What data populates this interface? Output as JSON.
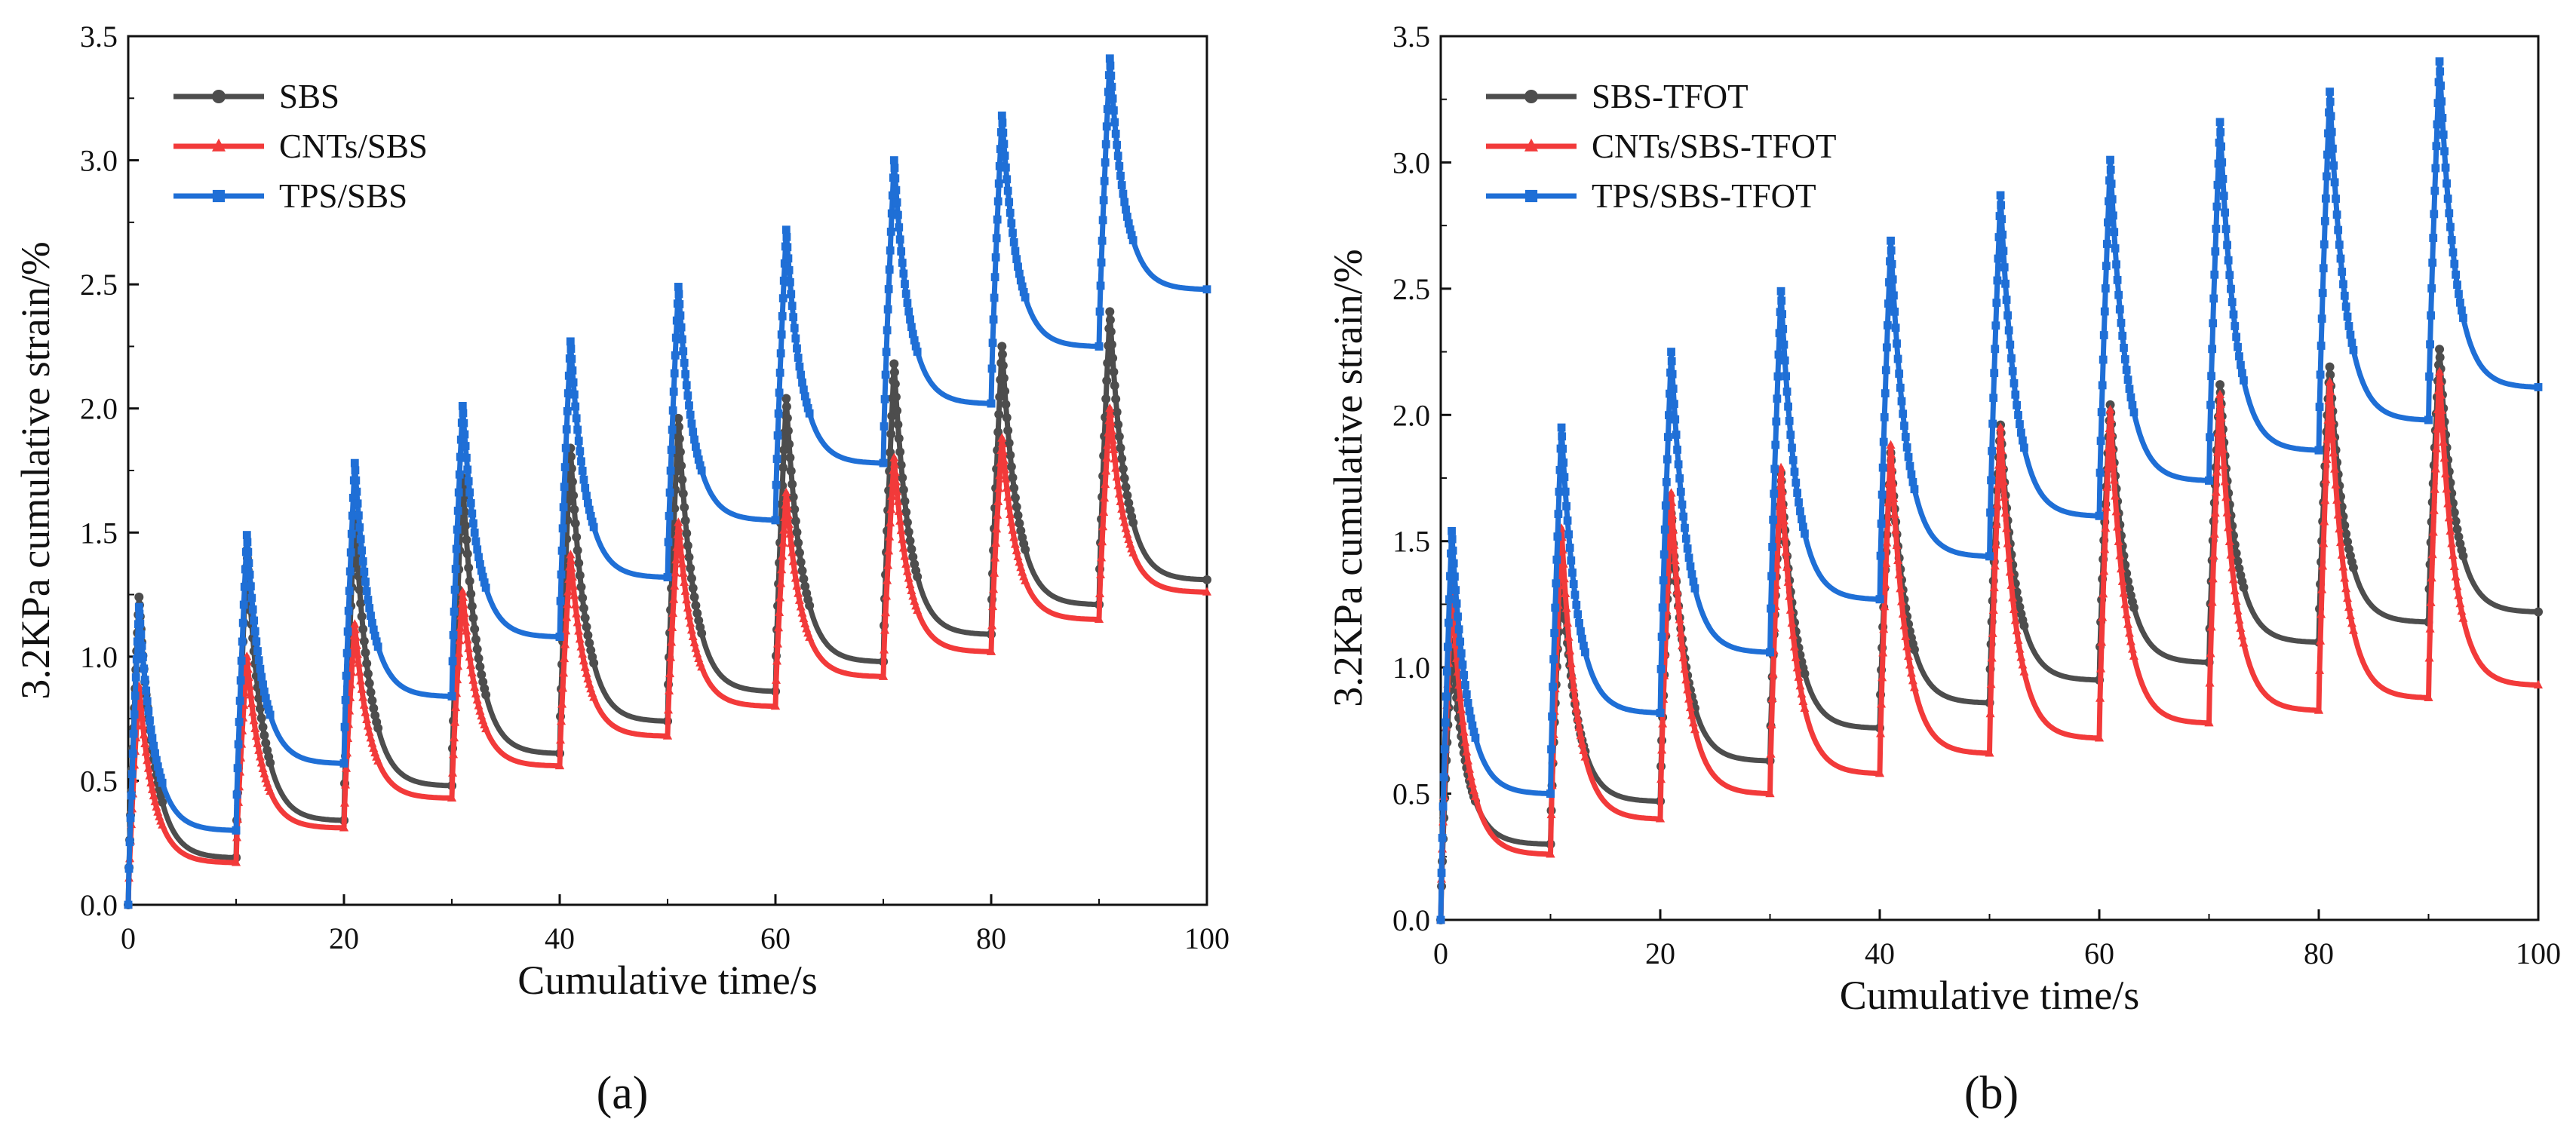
{
  "colors": {
    "sbs": "#4d4d4d",
    "cnts": "#f23a3a",
    "tps": "#1f6fd6"
  },
  "chart_data": [
    {
      "id": "a",
      "panel_label": "(a)",
      "type": "line",
      "xlabel": "Cumulative time/s",
      "ylabel": "3.2KPa cumulative strain/%",
      "xlim": [
        0,
        100
      ],
      "ylim": [
        0.0,
        3.5
      ],
      "xticks": [
        "0",
        "20",
        "40",
        "60",
        "80",
        "100"
      ],
      "yticks": [
        "0.0",
        "0.5",
        "1.0",
        "1.5",
        "2.0",
        "2.5",
        "3.0",
        "3.5"
      ],
      "legend_position": "top-left",
      "cycle_seconds": 10,
      "load_seconds": 1,
      "series": [
        {
          "name": "SBS",
          "color": "#4d4d4d",
          "marker": "circle",
          "cycle_start": [
            0,
            0.19,
            0.34,
            0.48,
            0.61,
            0.74,
            0.86,
            0.98,
            1.09,
            1.21
          ],
          "cycle_peak": [
            1.24,
            1.43,
            1.57,
            1.72,
            1.84,
            1.96,
            2.04,
            2.18,
            2.25,
            2.39
          ],
          "cycle_end": [
            0.19,
            0.34,
            0.48,
            0.61,
            0.74,
            0.86,
            0.98,
            1.09,
            1.21,
            1.31
          ]
        },
        {
          "name": "CNTs/SBS",
          "color": "#f23a3a",
          "marker": "triangle",
          "cycle_start": [
            0,
            0.17,
            0.31,
            0.43,
            0.56,
            0.68,
            0.8,
            0.92,
            1.02,
            1.15
          ],
          "cycle_peak": [
            0.88,
            1.0,
            1.13,
            1.26,
            1.41,
            1.54,
            1.66,
            1.8,
            1.88,
            2.0
          ],
          "cycle_end": [
            0.17,
            0.31,
            0.43,
            0.56,
            0.68,
            0.8,
            0.92,
            1.02,
            1.15,
            1.26
          ]
        },
        {
          "name": "TPS/SBS",
          "color": "#1f6fd6",
          "marker": "square",
          "cycle_start": [
            0,
            0.3,
            0.57,
            0.84,
            1.08,
            1.32,
            1.55,
            1.78,
            2.02,
            2.25
          ],
          "cycle_peak": [
            1.2,
            1.49,
            1.78,
            2.01,
            2.27,
            2.49,
            2.72,
            3.0,
            3.18,
            3.41
          ],
          "cycle_end": [
            0.3,
            0.57,
            0.84,
            1.08,
            1.32,
            1.55,
            1.78,
            2.02,
            2.25,
            2.48
          ]
        }
      ]
    },
    {
      "id": "b",
      "panel_label": "(b)",
      "type": "line",
      "xlabel": "Cumulative time/s",
      "ylabel": "3.2KPa cumulative strain/%",
      "xlim": [
        0,
        100
      ],
      "ylim": [
        0.0,
        3.5
      ],
      "xticks": [
        "0",
        "20",
        "40",
        "60",
        "80",
        "100"
      ],
      "yticks": [
        "0.0",
        "0.5",
        "1.0",
        "1.5",
        "2.0",
        "2.5",
        "3.0",
        "3.5"
      ],
      "legend_position": "top-left",
      "cycle_seconds": 10,
      "load_seconds": 1,
      "series": [
        {
          "name": "SBS-TFOT",
          "color": "#4d4d4d",
          "marker": "circle",
          "cycle_start": [
            0,
            0.3,
            0.47,
            0.63,
            0.76,
            0.86,
            0.95,
            1.02,
            1.1,
            1.18
          ],
          "cycle_peak": [
            1.1,
            1.4,
            1.61,
            1.77,
            1.85,
            1.96,
            2.04,
            2.12,
            2.19,
            2.26
          ],
          "cycle_end": [
            0.3,
            0.47,
            0.63,
            0.76,
            0.86,
            0.95,
            1.02,
            1.1,
            1.18,
            1.22
          ]
        },
        {
          "name": "CNTs/SBS-TFOT",
          "color": "#f23a3a",
          "marker": "triangle",
          "cycle_start": [
            0,
            0.26,
            0.4,
            0.5,
            0.58,
            0.66,
            0.72,
            0.78,
            0.83,
            0.88
          ],
          "cycle_peak": [
            1.33,
            1.55,
            1.69,
            1.79,
            1.88,
            1.95,
            2.02,
            2.08,
            2.13,
            2.17
          ],
          "cycle_end": [
            0.26,
            0.4,
            0.5,
            0.58,
            0.66,
            0.72,
            0.78,
            0.83,
            0.88,
            0.93
          ]
        },
        {
          "name": "TPS/SBS-TFOT",
          "color": "#1f6fd6",
          "marker": "square",
          "cycle_start": [
            0,
            0.5,
            0.82,
            1.06,
            1.27,
            1.44,
            1.6,
            1.74,
            1.86,
            1.98
          ],
          "cycle_peak": [
            1.54,
            1.95,
            2.25,
            2.49,
            2.69,
            2.87,
            3.01,
            3.16,
            3.28,
            3.4
          ],
          "cycle_end": [
            0.5,
            0.82,
            1.06,
            1.27,
            1.44,
            1.6,
            1.74,
            1.86,
            1.98,
            2.11
          ]
        }
      ]
    }
  ]
}
